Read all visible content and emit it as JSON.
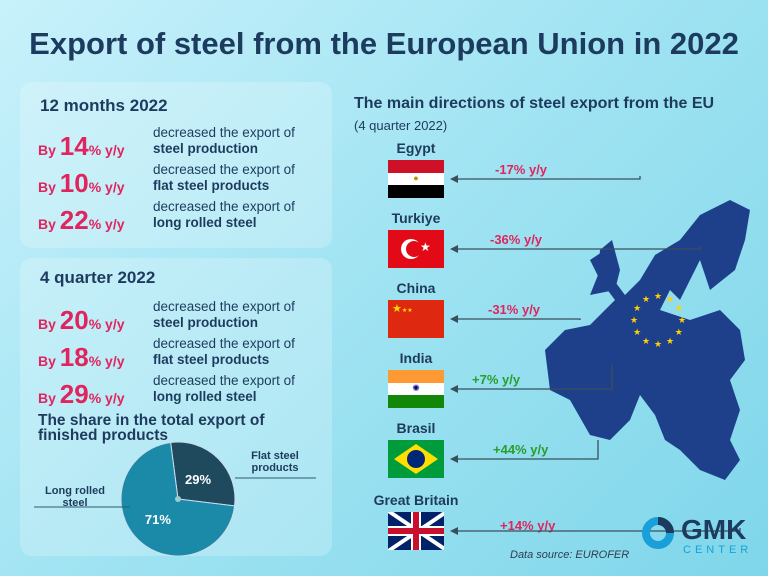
{
  "title": "Export of steel from the European Union in 2022",
  "year_panel": {
    "heading": "12 months 2022",
    "rows": [
      {
        "prefix": "By",
        "value": "14",
        "suffix": "% y/y",
        "text": "decreased the export of",
        "item": "steel production"
      },
      {
        "prefix": "By",
        "value": "10",
        "suffix": "% y/y",
        "text": "decreased the export of",
        "item": "flat steel products"
      },
      {
        "prefix": "By",
        "value": "22",
        "suffix": "% y/y",
        "text": "decreased the export of",
        "item": "long rolled steel"
      }
    ]
  },
  "quarter_panel": {
    "heading": "4 quarter 2022",
    "rows": [
      {
        "prefix": "By",
        "value": "20",
        "suffix": "% y/y",
        "text": "decreased the export of",
        "item": "steel production"
      },
      {
        "prefix": "By",
        "value": "18",
        "suffix": "% y/y",
        "text": "decreased the export of",
        "item": "flat steel products"
      },
      {
        "prefix": "By",
        "value": "29",
        "suffix": "% y/y",
        "text": "decreased the export of",
        "item": "long rolled steel"
      }
    ]
  },
  "chart_data": {
    "type": "pie",
    "title": "The share in the total export of finished products",
    "slices": [
      {
        "name": "Flat steel products",
        "value": 29,
        "label": "29%",
        "color": "#1f4a5e"
      },
      {
        "name": "Long rolled steel",
        "value": 71,
        "label": "71%",
        "color": "#1a8aa8"
      }
    ]
  },
  "directions": {
    "title": "The main directions of steel export from the EU",
    "subtitle": "(4 quarter 2022)",
    "countries": [
      {
        "name": "Egypt",
        "change": "-17% y/y",
        "color": "#e0245e"
      },
      {
        "name": "Turkiye",
        "change": "-36% y/y",
        "color": "#e0245e"
      },
      {
        "name": "China",
        "change": "-31% y/y",
        "color": "#e0245e"
      },
      {
        "name": "India",
        "change": "+7% y/y",
        "color": "#2a9d2a"
      },
      {
        "name": "Brasil",
        "change": "+44% y/y",
        "color": "#2a9d2a"
      },
      {
        "name": "Great Britain",
        "change": "+14% y/y",
        "color": "#e0245e"
      }
    ]
  },
  "source": "Data source: EUROFER",
  "logo": {
    "name": "GMK",
    "sub": "CENTER"
  }
}
